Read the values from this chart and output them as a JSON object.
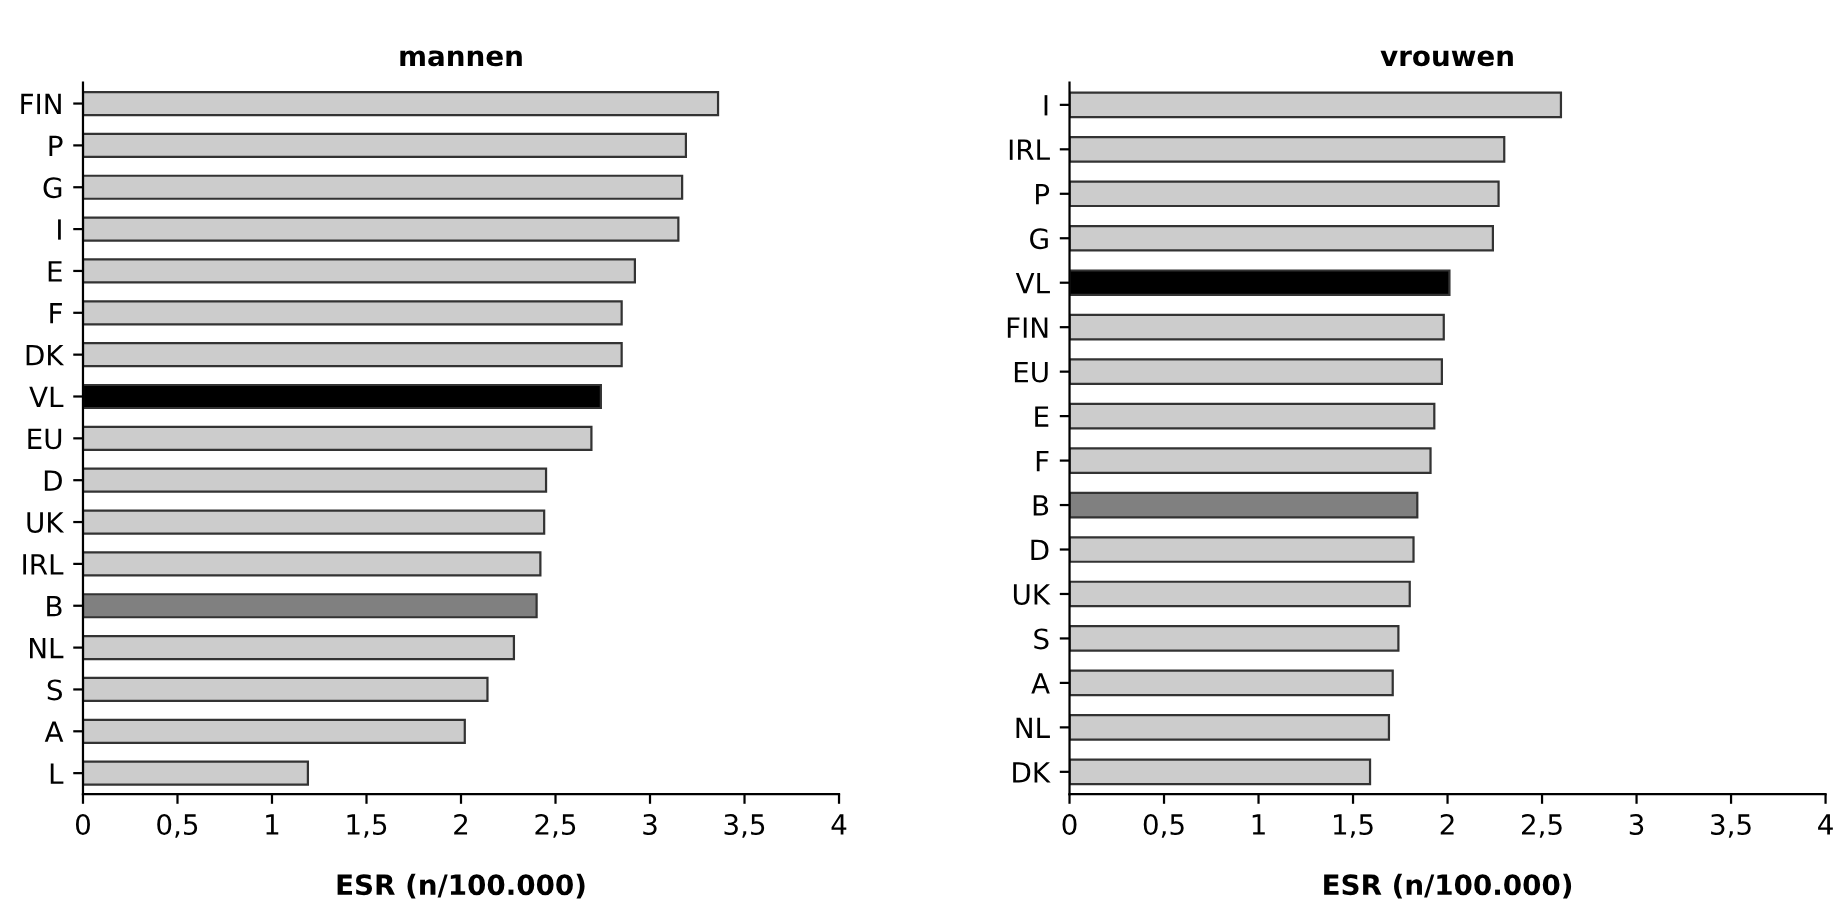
{
  "chart_data": [
    {
      "type": "bar",
      "orientation": "horizontal",
      "title": "mannen",
      "xlabel": "ESR (n/100.000)",
      "categories": [
        "FIN",
        "P",
        "G",
        "I",
        "E",
        "F",
        "DK",
        "VL",
        "EU",
        "D",
        "UK",
        "IRL",
        "B",
        "NL",
        "S",
        "A",
        "L"
      ],
      "values": [
        3.36,
        3.19,
        3.17,
        3.15,
        2.92,
        2.85,
        2.85,
        2.74,
        2.69,
        2.45,
        2.44,
        2.42,
        2.4,
        2.28,
        2.14,
        2.02,
        1.19
      ],
      "colors": [
        "#cccccc",
        "#cccccc",
        "#cccccc",
        "#cccccc",
        "#cccccc",
        "#cccccc",
        "#cccccc",
        "#000000",
        "#cccccc",
        "#cccccc",
        "#cccccc",
        "#cccccc",
        "#808080",
        "#cccccc",
        "#cccccc",
        "#cccccc",
        "#cccccc"
      ],
      "xlim": [
        0,
        4
      ],
      "xticks": [
        0,
        {
          "value": 0.5,
          "label": "0,5"
        },
        1,
        {
          "value": 1.5,
          "label": "1,5"
        },
        2,
        {
          "value": 2.5,
          "label": "2,5"
        },
        3,
        {
          "value": 3.5,
          "label": "3,5"
        },
        4
      ],
      "grid": false,
      "legend": false
    },
    {
      "type": "bar",
      "orientation": "horizontal",
      "title": "vrouwen",
      "xlabel": "ESR (n/100.000)",
      "categories": [
        "I",
        "IRL",
        "P",
        "G",
        "VL",
        "FIN",
        "EU",
        "E",
        "F",
        "B",
        "D",
        "UK",
        "S",
        "A",
        "NL",
        "DK"
      ],
      "values": [
        2.6,
        2.3,
        2.27,
        2.24,
        2.01,
        1.98,
        1.97,
        1.93,
        1.91,
        1.84,
        1.82,
        1.8,
        1.74,
        1.71,
        1.69,
        1.59
      ],
      "colors": [
        "#cccccc",
        "#cccccc",
        "#cccccc",
        "#cccccc",
        "#000000",
        "#cccccc",
        "#cccccc",
        "#cccccc",
        "#cccccc",
        "#808080",
        "#cccccc",
        "#cccccc",
        "#cccccc",
        "#cccccc",
        "#cccccc",
        "#cccccc"
      ],
      "xlim": [
        0,
        4
      ],
      "xticks": [
        0,
        {
          "value": 0.5,
          "label": "0,5"
        },
        1,
        {
          "value": 1.5,
          "label": "1,5"
        },
        2,
        {
          "value": 2.5,
          "label": "2,5"
        },
        3,
        {
          "value": 3.5,
          "label": "3,5"
        },
        4
      ],
      "grid": false,
      "legend": false
    }
  ]
}
